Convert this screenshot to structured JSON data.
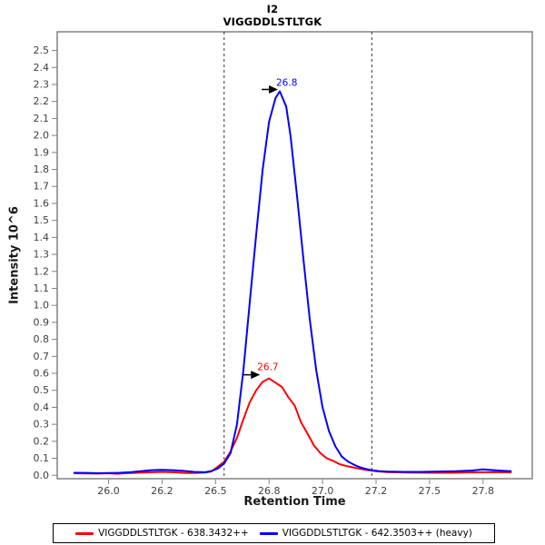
{
  "chart_data": {
    "type": "line",
    "title": "I2",
    "subtitle": "VIGGDDLSTLTGK",
    "xlabel": "Retention Time",
    "ylabel": "Intensity 10^6",
    "xlim": [
      25.76,
      27.98
    ],
    "ylim": [
      -0.02,
      2.61
    ],
    "grid": false,
    "legend_position": "bottom",
    "x_ticks": {
      "values": [
        26.0,
        26.25,
        26.5,
        26.75,
        27.0,
        27.25,
        27.5,
        27.75
      ],
      "labels": [
        "26.0",
        "26.2",
        "26.5",
        "26.8",
        "27.0",
        "27.2",
        "27.5",
        "27.8"
      ]
    },
    "y_ticks": {
      "start": 0.0,
      "end": 2.5,
      "step": 0.1
    },
    "integration_boundaries": [
      26.54,
      27.23
    ],
    "series": [
      {
        "name": "VIGGDDLSTLTGK - 638.3432++",
        "color": "#ff0000",
        "peak_retention_time": "26.7",
        "points": [
          [
            25.84,
            0.012
          ],
          [
            25.9,
            0.011
          ],
          [
            25.95,
            0.01
          ],
          [
            26.0,
            0.012
          ],
          [
            26.04,
            0.009
          ],
          [
            26.08,
            0.012
          ],
          [
            26.12,
            0.014
          ],
          [
            26.16,
            0.016
          ],
          [
            26.2,
            0.018
          ],
          [
            26.25,
            0.02
          ],
          [
            26.3,
            0.018
          ],
          [
            26.35,
            0.014
          ],
          [
            26.4,
            0.013
          ],
          [
            26.45,
            0.016
          ],
          [
            26.48,
            0.022
          ],
          [
            26.51,
            0.05
          ],
          [
            26.54,
            0.08
          ],
          [
            26.57,
            0.14
          ],
          [
            26.6,
            0.22
          ],
          [
            26.63,
            0.33
          ],
          [
            26.66,
            0.43
          ],
          [
            26.69,
            0.5
          ],
          [
            26.72,
            0.55
          ],
          [
            26.75,
            0.57
          ],
          [
            26.78,
            0.545
          ],
          [
            26.81,
            0.52
          ],
          [
            26.84,
            0.46
          ],
          [
            26.87,
            0.41
          ],
          [
            26.9,
            0.31
          ],
          [
            26.93,
            0.245
          ],
          [
            26.96,
            0.175
          ],
          [
            26.99,
            0.13
          ],
          [
            27.02,
            0.1
          ],
          [
            27.05,
            0.085
          ],
          [
            27.08,
            0.065
          ],
          [
            27.12,
            0.052
          ],
          [
            27.16,
            0.042
          ],
          [
            27.2,
            0.032
          ],
          [
            27.25,
            0.024
          ],
          [
            27.3,
            0.019
          ],
          [
            27.4,
            0.016
          ],
          [
            27.5,
            0.015
          ],
          [
            27.6,
            0.015
          ],
          [
            27.7,
            0.017
          ],
          [
            27.8,
            0.019
          ],
          [
            27.88,
            0.017
          ]
        ]
      },
      {
        "name": "VIGGDDLSTLTGK - 642.3503++ (heavy)",
        "color": "#0000ff",
        "peak_retention_time": "26.8",
        "points": [
          [
            25.84,
            0.015
          ],
          [
            25.9,
            0.014
          ],
          [
            25.95,
            0.012
          ],
          [
            26.0,
            0.013
          ],
          [
            26.05,
            0.015
          ],
          [
            26.1,
            0.018
          ],
          [
            26.15,
            0.024
          ],
          [
            26.2,
            0.03
          ],
          [
            26.25,
            0.032
          ],
          [
            26.3,
            0.03
          ],
          [
            26.35,
            0.026
          ],
          [
            26.4,
            0.02
          ],
          [
            26.45,
            0.018
          ],
          [
            26.48,
            0.025
          ],
          [
            26.51,
            0.04
          ],
          [
            26.54,
            0.07
          ],
          [
            26.57,
            0.13
          ],
          [
            26.6,
            0.3
          ],
          [
            26.63,
            0.62
          ],
          [
            26.66,
            1.02
          ],
          [
            26.69,
            1.42
          ],
          [
            26.72,
            1.8
          ],
          [
            26.75,
            2.08
          ],
          [
            26.78,
            2.22
          ],
          [
            26.8,
            2.26
          ],
          [
            26.83,
            2.17
          ],
          [
            26.85,
            2.0
          ],
          [
            26.88,
            1.65
          ],
          [
            26.91,
            1.28
          ],
          [
            26.94,
            0.92
          ],
          [
            26.97,
            0.62
          ],
          [
            27.0,
            0.4
          ],
          [
            27.03,
            0.26
          ],
          [
            27.06,
            0.17
          ],
          [
            27.09,
            0.11
          ],
          [
            27.12,
            0.08
          ],
          [
            27.15,
            0.06
          ],
          [
            27.18,
            0.045
          ],
          [
            27.22,
            0.032
          ],
          [
            27.26,
            0.025
          ],
          [
            27.3,
            0.022
          ],
          [
            27.38,
            0.02
          ],
          [
            27.46,
            0.02
          ],
          [
            27.54,
            0.022
          ],
          [
            27.62,
            0.024
          ],
          [
            27.7,
            0.028
          ],
          [
            27.75,
            0.035
          ],
          [
            27.8,
            0.03
          ],
          [
            27.85,
            0.026
          ],
          [
            27.88,
            0.024
          ]
        ]
      }
    ],
    "annotations": [
      {
        "label": "26.7",
        "color": "#ff0000",
        "t": 26.75,
        "v": 0.57,
        "text_dx": -13,
        "text_dy": -9,
        "arrow_dx": -10,
        "arrow_dy": -4
      },
      {
        "label": "26.8",
        "color": "#0000ff",
        "t": 26.8,
        "v": 2.26,
        "text_dx": -4,
        "text_dy": -6,
        "arrow_dx": -2,
        "arrow_dy": -2
      }
    ]
  },
  "legend": {
    "items": [
      {
        "label": "VIGGDDLSTLTGK - 638.3432++",
        "color": "#ff0000"
      },
      {
        "label": "VIGGDDLSTLTGK - 642.3503++ (heavy)",
        "color": "#0000ff"
      }
    ]
  },
  "colors": {
    "frame": "#808080",
    "tick_text": "#3f3f3f",
    "boundary_line": "#333333",
    "annotation_arrow": "#000000"
  }
}
